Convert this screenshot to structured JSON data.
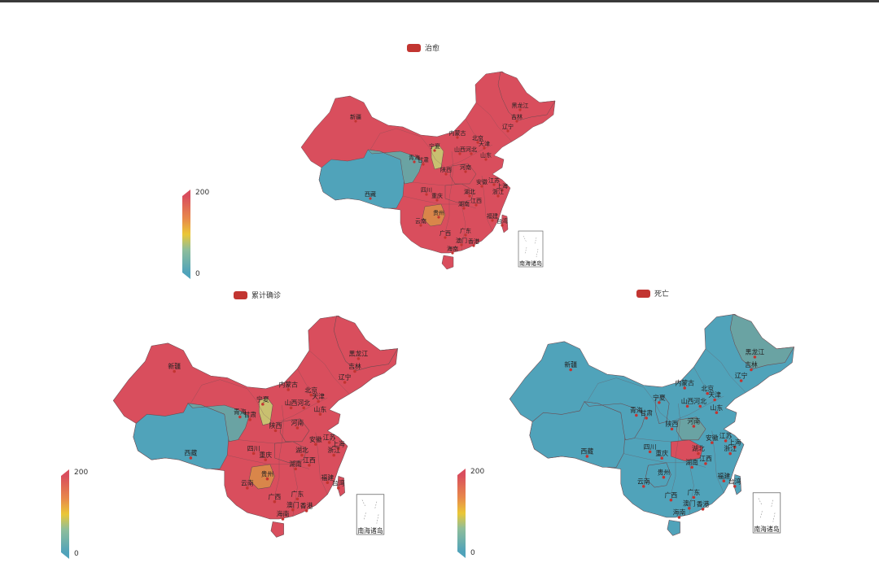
{
  "colors": {
    "red": "#d94e5d",
    "teal": "#50a3ba",
    "green_teal": "#6aa3a3",
    "yellow": "#c9c070",
    "orange": "#d9864a",
    "legend_red": "#c23531",
    "dot": "#c23531"
  },
  "maps": [
    {
      "legend_label": "治愈",
      "visualmap": {
        "max": "200",
        "min": "0"
      },
      "fills": {
        "default": "red",
        "qinghai": "green_teal",
        "xizang": "teal",
        "guizhou": "orange",
        "ningxia": "yellow"
      },
      "nanhai_label": "南海诸岛"
    },
    {
      "legend_label": "累计确诊",
      "visualmap": {
        "max": "200",
        "min": "0"
      },
      "fills": {
        "default": "red",
        "qinghai": "green_teal",
        "xizang": "teal",
        "guizhou": "orange",
        "ningxia": "yellow"
      },
      "nanhai_label": "南海诸岛"
    },
    {
      "legend_label": "死亡",
      "visualmap": {
        "max": "200",
        "min": "0"
      },
      "fills": {
        "default": "teal",
        "heilongjiang": "green_teal",
        "henan": "green_teal",
        "hubei": "red",
        "qinghai": "teal",
        "xizang": "teal",
        "guizhou": "teal",
        "ningxia": "teal"
      },
      "nanhai_label": "南海诸岛"
    }
  ],
  "province_labels": [
    "黑龙江",
    "吉林",
    "辽宁",
    "内蒙古",
    "北京",
    "天津",
    "河北",
    "山西",
    "山东",
    "宁夏",
    "青海",
    "甘肃",
    "陕西",
    "河南",
    "安徽",
    "江苏",
    "上海",
    "浙江",
    "湖北",
    "四川",
    "重庆",
    "湖南",
    "江西",
    "福建",
    "贵州",
    "云南",
    "广西",
    "广东",
    "台湾",
    "澳门",
    "香港",
    "海南",
    "新疆",
    "西藏"
  ]
}
